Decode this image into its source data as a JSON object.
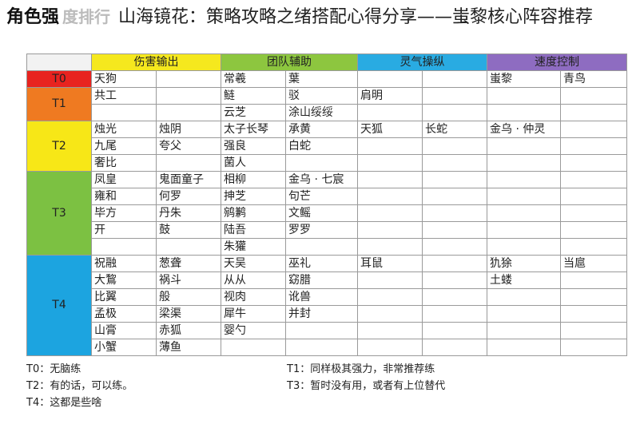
{
  "title": {
    "lead": "角色强",
    "lead_ghost": "度排行",
    "headline": "山海镜花：策略攻略之绪搭配心得分享——蚩黎核心阵容推荐"
  },
  "table": {
    "groups": [
      {
        "label": "伤害输出",
        "color": "#f5e81e"
      },
      {
        "label": "团队辅助",
        "color": "#8dc63f"
      },
      {
        "label": "灵气操纵",
        "color": "#29abe2"
      },
      {
        "label": "速度控制",
        "color": "#8e6cc1"
      }
    ],
    "tiers": [
      {
        "label": "T0",
        "color": "#e8231f",
        "rows": [
          [
            "天狗",
            "",
            "常羲",
            "葉",
            "",
            "",
            "蚩黎",
            "青鸟"
          ]
        ]
      },
      {
        "label": "T1",
        "color": "#ef7a21",
        "rows": [
          [
            "共工",
            "",
            "鲢",
            "驳",
            "肩明",
            "",
            "",
            ""
          ],
          [
            "",
            "",
            "云芝",
            "涂山绥绥",
            "",
            "",
            "",
            ""
          ]
        ]
      },
      {
        "label": "T2",
        "color": "#f7e717",
        "rows": [
          [
            "烛光",
            "烛阴",
            "太子长琴",
            "承黄",
            "天狐",
            "长蛇",
            "金乌 · 仲灵",
            ""
          ],
          [
            "九尾",
            "夸父",
            "强良",
            "白蛇",
            "",
            "",
            "",
            ""
          ],
          [
            "奢比",
            "",
            "菌人",
            "",
            "",
            "",
            "",
            ""
          ]
        ]
      },
      {
        "label": "T3",
        "color": "#7cc142",
        "rows": [
          [
            "凤皇",
            "鬼面童子",
            "相柳",
            "金乌 · 七宸",
            "",
            "",
            "",
            ""
          ],
          [
            "雍和",
            "何罗",
            "抻芝",
            "句芒",
            "",
            "",
            "",
            ""
          ],
          [
            "毕方",
            "丹朱",
            "鹓鹣",
            "文鳐",
            "",
            "",
            "",
            ""
          ],
          [
            "开",
            "鼓",
            "陆吾",
            "罗罗",
            "",
            "",
            "",
            ""
          ],
          [
            "",
            "",
            "朱獾",
            "",
            "",
            "",
            "",
            ""
          ]
        ]
      },
      {
        "label": "T4",
        "color": "#1ca4e0",
        "rows": [
          [
            "祝融",
            "葱聋",
            "天吴",
            "巫礼",
            "耳鼠",
            "",
            "犰狳",
            "当扈"
          ],
          [
            "大鵹",
            "祸斗",
            "从从",
            "窈腊",
            "",
            "",
            "土蝼",
            ""
          ],
          [
            "比翼",
            "般",
            "视肉",
            "讹兽",
            "",
            "",
            "",
            ""
          ],
          [
            "孟极",
            "梁渠",
            "犀牛",
            "并封",
            "",
            "",
            "",
            ""
          ],
          [
            "山膏",
            "赤狐",
            "婴勺",
            "",
            "",
            "",
            "",
            ""
          ],
          [
            "小蟹",
            "薄鱼",
            "",
            "",
            "",
            "",
            "",
            ""
          ]
        ]
      }
    ],
    "grid_color": "#9a9a9a",
    "body_bg": "#ffffff"
  },
  "legend": {
    "t0": "T0：无脑练",
    "t1": "T1：同样极其强力，非常推荐练",
    "t2": "T2：有的话，可以练。",
    "t3": "T3：暂时没有用，或者有上位替代",
    "t4": "T4：这都是些啥"
  }
}
